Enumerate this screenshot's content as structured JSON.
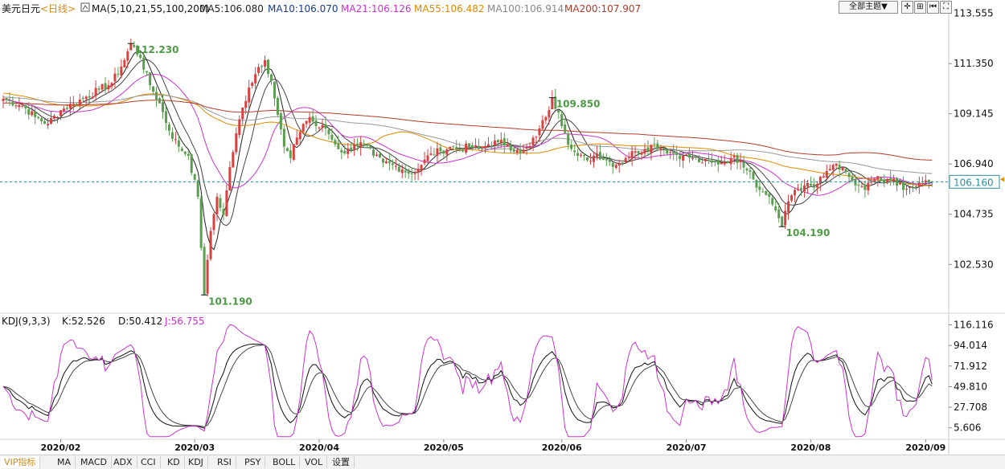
{
  "header": {
    "instrument": "美元日元",
    "period": "<日线>",
    "ma_label": "MA(5,10,21,55,100,200)",
    "ma5": "MA5:106.080",
    "ma10": "MA10:106.070",
    "ma21": "MA21:106.126",
    "ma55": "MA55:106.482",
    "ma100": "MA100:106.914",
    "ma200": "MA200:107.907",
    "theme_button": "全部主题▼",
    "kdj_label": "KDJ(9,3,3)",
    "k": "K:52.526",
    "d": "D:50.412",
    "j": "J:56.755"
  },
  "annotations": {
    "high1": "112.230",
    "high2": "109.850",
    "low1": "101.190",
    "low2": "104.190"
  },
  "current_price": "106.160",
  "tabs": [
    "VIP指标",
    "MA",
    "MACD",
    "ADX",
    "CCI",
    "KD",
    "KDJ",
    "RSI",
    "PSY",
    "BOLL",
    "VOL",
    "设置"
  ],
  "colors": {
    "up": "#d94040",
    "down": "#5a9e4f",
    "ma5": "#222222",
    "ma10": "#444444",
    "ma21": "#cc33cc",
    "ma55": "#e08a00",
    "ma100": "#999999",
    "ma200": "#b23b2b",
    "j": "#cc33cc"
  },
  "chart_data": [
    {
      "type": "candlestick",
      "price_axis_ticks": [
        "113.555",
        "111.350",
        "109.145",
        "106.940",
        "104.735",
        "102.530"
      ],
      "ylim": [
        100.6,
        114.0
      ],
      "x_axis_labels": [
        "2020/02",
        "2020/03",
        "2020/04",
        "2020/05",
        "2020/06",
        "2020/07",
        "2020/08",
        "2020/09"
      ],
      "anchors": [
        [
          0,
          109.8
        ],
        [
          6,
          109.5
        ],
        [
          10,
          109.0
        ],
        [
          14,
          108.7
        ],
        [
          18,
          109.3
        ],
        [
          22,
          109.6
        ],
        [
          26,
          109.9
        ],
        [
          30,
          110.2
        ],
        [
          34,
          110.5
        ],
        [
          38,
          111.5
        ],
        [
          40,
          112.23
        ],
        [
          43,
          111.6
        ],
        [
          46,
          110.4
        ],
        [
          49,
          109.6
        ],
        [
          52,
          108.4
        ],
        [
          55,
          107.7
        ],
        [
          58,
          107.3
        ],
        [
          61,
          105.5
        ],
        [
          63,
          101.19
        ],
        [
          65,
          104.0
        ],
        [
          67,
          105.5
        ],
        [
          69,
          104.7
        ],
        [
          71,
          106.8
        ],
        [
          74,
          108.9
        ],
        [
          77,
          110.3
        ],
        [
          80,
          111.2
        ],
        [
          82,
          111.5
        ],
        [
          84,
          110.6
        ],
        [
          86,
          109.1
        ],
        [
          88,
          107.7
        ],
        [
          90,
          107.2
        ],
        [
          92,
          108.1
        ],
        [
          94,
          108.7
        ],
        [
          96,
          109.0
        ],
        [
          98,
          108.6
        ],
        [
          101,
          108.5
        ],
        [
          104,
          107.8
        ],
        [
          107,
          107.4
        ],
        [
          110,
          107.8
        ],
        [
          113,
          107.8
        ],
        [
          116,
          107.3
        ],
        [
          119,
          107.0
        ],
        [
          122,
          106.9
        ],
        [
          125,
          106.7
        ],
        [
          128,
          106.5
        ],
        [
          131,
          106.9
        ],
        [
          134,
          107.4
        ],
        [
          137,
          107.5
        ],
        [
          140,
          107.7
        ],
        [
          143,
          107.6
        ],
        [
          146,
          107.7
        ],
        [
          149,
          107.6
        ],
        [
          152,
          107.8
        ],
        [
          155,
          107.9
        ],
        [
          158,
          107.8
        ],
        [
          162,
          107.4
        ],
        [
          165,
          107.7
        ],
        [
          168,
          108.5
        ],
        [
          170,
          109.0
        ],
        [
          172,
          109.85
        ],
        [
          174,
          109.2
        ],
        [
          176,
          108.3
        ],
        [
          178,
          107.6
        ],
        [
          180,
          107.3
        ],
        [
          183,
          107.1
        ],
        [
          186,
          107.4
        ],
        [
          189,
          107.1
        ],
        [
          192,
          106.9
        ],
        [
          195,
          107.2
        ],
        [
          198,
          107.5
        ],
        [
          201,
          107.6
        ],
        [
          204,
          107.8
        ],
        [
          207,
          107.6
        ],
        [
          210,
          107.4
        ],
        [
          213,
          107.3
        ],
        [
          216,
          107.2
        ],
        [
          219,
          107.0
        ],
        [
          222,
          107.0
        ],
        [
          225,
          107.0
        ],
        [
          228,
          107.2
        ],
        [
          231,
          107.1
        ],
        [
          234,
          106.6
        ],
        [
          237,
          105.8
        ],
        [
          240,
          105.5
        ],
        [
          242,
          104.9
        ],
        [
          244,
          104.19
        ],
        [
          246,
          105.3
        ],
        [
          248,
          105.8
        ],
        [
          251,
          106.0
        ],
        [
          254,
          105.9
        ],
        [
          257,
          106.4
        ],
        [
          260,
          106.9
        ],
        [
          262,
          106.7
        ],
        [
          264,
          106.6
        ],
        [
          267,
          106.0
        ],
        [
          270,
          105.8
        ],
        [
          273,
          106.3
        ],
        [
          276,
          106.1
        ],
        [
          279,
          106.3
        ],
        [
          282,
          105.8
        ],
        [
          285,
          105.9
        ],
        [
          288,
          106.1
        ],
        [
          291,
          106.16
        ]
      ],
      "ma_series": [
        "MA5",
        "MA10",
        "MA21",
        "MA55",
        "MA100",
        "MA200"
      ],
      "annotations": [
        [
          "112.230",
          40
        ],
        [
          "109.850",
          172
        ],
        [
          "101.190",
          63
        ],
        [
          "104.190",
          244
        ]
      ],
      "current": 106.16
    },
    {
      "type": "line",
      "name": "KDJ(9,3,3)",
      "y_axis_ticks": [
        "116.116",
        "94.014",
        "71.912",
        "49.810",
        "27.708",
        "5.606"
      ],
      "ylim": [
        -5.0,
        120.0
      ],
      "series": [
        {
          "name": "K",
          "last": 52.526
        },
        {
          "name": "D",
          "last": 50.412
        },
        {
          "name": "J",
          "last": 56.755
        }
      ]
    }
  ]
}
